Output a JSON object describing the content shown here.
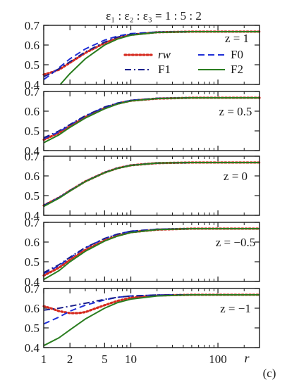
{
  "chart_data": {
    "type": "line",
    "title": "ε₁ : ε₂ : ε₃ = 1 : 5 : 2",
    "xlabel": "r",
    "corner_label": "(c)",
    "xscale": "log",
    "xlim": [
      1,
      300
    ],
    "ylim": [
      0.4,
      0.7
    ],
    "xticks": [
      1,
      2,
      5,
      10,
      100
    ],
    "yticks": [
      0.4,
      0.5,
      0.6,
      0.7
    ],
    "xtick_labels": [
      "1",
      "2",
      "5",
      "10",
      "100"
    ],
    "ytick_labels": [
      "0.4",
      "0.5",
      "0.6",
      "0.7"
    ],
    "legend": {
      "placement": "top panel, center-right",
      "entries": [
        "rw",
        "F0",
        "F1",
        "F2"
      ]
    },
    "styles": {
      "rw": {
        "color": "#d62a1f",
        "dash": "dotted"
      },
      "F0": {
        "color": "#1f2fd6",
        "dash": "dashed"
      },
      "F1": {
        "color": "#1a1f8c",
        "dash": "dashdot"
      },
      "F2": {
        "color": "#2a7d1f",
        "dash": "solid"
      }
    },
    "panels": [
      {
        "label": "z = 1",
        "series": [
          {
            "name": "rw",
            "x": [
              1,
              1.2,
              1.5,
              2,
              3,
              5,
              7,
              10,
              20,
              50,
              300
            ],
            "y": [
              0.45,
              0.46,
              0.475,
              0.51,
              0.56,
              0.61,
              0.635,
              0.652,
              0.665,
              0.668,
              0.668
            ]
          },
          {
            "name": "F0",
            "x": [
              1,
              1.2,
              1.5,
              2,
              3,
              5,
              7,
              10,
              20,
              50,
              300
            ],
            "y": [
              0.425,
              0.45,
              0.485,
              0.53,
              0.58,
              0.625,
              0.645,
              0.658,
              0.666,
              0.668,
              0.668
            ]
          },
          {
            "name": "F1",
            "x": [
              1,
              1.2,
              1.5,
              2,
              3,
              5,
              7,
              10,
              20,
              50,
              300
            ],
            "y": [
              0.44,
              0.455,
              0.48,
              0.515,
              0.565,
              0.615,
              0.64,
              0.655,
              0.665,
              0.668,
              0.668
            ]
          },
          {
            "name": "F2",
            "x": [
              1.55,
              2,
              3,
              5,
              7,
              10,
              20,
              50,
              300
            ],
            "y": [
              0.4,
              0.455,
              0.53,
              0.6,
              0.63,
              0.65,
              0.664,
              0.668,
              0.668
            ]
          }
        ]
      },
      {
        "label": "z = 0.5",
        "series": [
          {
            "name": "rw",
            "x": [
              1,
              1.5,
              2,
              3,
              5,
              7,
              10,
              20,
              50,
              300
            ],
            "y": [
              0.455,
              0.49,
              0.525,
              0.57,
              0.615,
              0.638,
              0.653,
              0.664,
              0.668,
              0.668
            ]
          },
          {
            "name": "F0",
            "x": [
              1,
              1.5,
              2,
              3,
              5,
              7,
              10,
              20,
              50,
              300
            ],
            "y": [
              0.46,
              0.495,
              0.53,
              0.575,
              0.62,
              0.64,
              0.655,
              0.665,
              0.668,
              0.668
            ]
          },
          {
            "name": "F1",
            "x": [
              1,
              1.5,
              2,
              3,
              5,
              7,
              10,
              20,
              50,
              300
            ],
            "y": [
              0.465,
              0.5,
              0.532,
              0.577,
              0.621,
              0.641,
              0.655,
              0.665,
              0.668,
              0.668
            ]
          },
          {
            "name": "F2",
            "x": [
              1,
              1.5,
              2,
              3,
              5,
              7,
              10,
              20,
              50,
              300
            ],
            "y": [
              0.44,
              0.48,
              0.518,
              0.565,
              0.612,
              0.636,
              0.652,
              0.664,
              0.668,
              0.668
            ]
          }
        ]
      },
      {
        "label": "z = 0",
        "series": [
          {
            "name": "rw",
            "x": [
              1,
              1.5,
              2,
              3,
              5,
              7,
              10,
              20,
              50,
              300
            ],
            "y": [
              0.45,
              0.49,
              0.525,
              0.572,
              0.617,
              0.639,
              0.654,
              0.665,
              0.668,
              0.668
            ]
          },
          {
            "name": "F0",
            "x": [
              1,
              1.5,
              2,
              3,
              5,
              7,
              10,
              20,
              50,
              300
            ],
            "y": [
              0.45,
              0.49,
              0.525,
              0.572,
              0.617,
              0.639,
              0.654,
              0.665,
              0.668,
              0.668
            ]
          },
          {
            "name": "F1",
            "x": [
              1,
              1.5,
              2,
              3,
              5,
              7,
              10,
              20,
              50,
              300
            ],
            "y": [
              0.45,
              0.49,
              0.525,
              0.572,
              0.617,
              0.639,
              0.654,
              0.665,
              0.668,
              0.668
            ]
          },
          {
            "name": "F2",
            "x": [
              1,
              1.5,
              2,
              3,
              5,
              7,
              10,
              20,
              50,
              300
            ],
            "y": [
              0.445,
              0.487,
              0.523,
              0.571,
              0.616,
              0.638,
              0.653,
              0.665,
              0.668,
              0.668
            ]
          }
        ]
      },
      {
        "label": "z = −0.5",
        "series": [
          {
            "name": "rw",
            "x": [
              1,
              1.5,
              2,
              3,
              5,
              7,
              10,
              20,
              50,
              300
            ],
            "y": [
              0.43,
              0.47,
              0.51,
              0.56,
              0.608,
              0.632,
              0.65,
              0.663,
              0.668,
              0.668
            ]
          },
          {
            "name": "F0",
            "x": [
              1,
              1.5,
              2,
              3,
              5,
              7,
              10,
              20,
              50,
              300
            ],
            "y": [
              0.44,
              0.48,
              0.52,
              0.57,
              0.618,
              0.64,
              0.655,
              0.665,
              0.668,
              0.668
            ]
          },
          {
            "name": "F1",
            "x": [
              1,
              1.5,
              2,
              3,
              5,
              7,
              10,
              20,
              50,
              300
            ],
            "y": [
              0.445,
              0.485,
              0.523,
              0.572,
              0.618,
              0.64,
              0.655,
              0.665,
              0.668,
              0.668
            ]
          },
          {
            "name": "F2",
            "x": [
              1,
              1.5,
              2,
              3,
              5,
              7,
              10,
              20,
              50,
              300
            ],
            "y": [
              0.41,
              0.455,
              0.5,
              0.553,
              0.605,
              0.63,
              0.648,
              0.663,
              0.668,
              0.668
            ]
          }
        ]
      },
      {
        "label": "z = −1",
        "series": [
          {
            "name": "rw",
            "x": [
              1,
              1.2,
              1.5,
              2,
              2.5,
              3,
              4,
              5,
              7,
              10,
              20,
              50,
              300
            ],
            "y": [
              0.61,
              0.6,
              0.585,
              0.575,
              0.575,
              0.58,
              0.6,
              0.615,
              0.637,
              0.653,
              0.665,
              0.668,
              0.668
            ]
          },
          {
            "name": "F0",
            "x": [
              1,
              1.5,
              2,
              3,
              5,
              7,
              10,
              20,
              50,
              300
            ],
            "y": [
              0.52,
              0.555,
              0.585,
              0.615,
              0.642,
              0.655,
              0.662,
              0.667,
              0.668,
              0.668
            ]
          },
          {
            "name": "F1",
            "x": [
              1,
              1.5,
              2,
              3,
              5,
              7,
              10,
              20,
              50,
              300
            ],
            "y": [
              0.59,
              0.6,
              0.61,
              0.625,
              0.645,
              0.655,
              0.662,
              0.667,
              0.668,
              0.668
            ]
          },
          {
            "name": "F2",
            "x": [
              1,
              1.5,
              2,
              3,
              5,
              7,
              10,
              20,
              50,
              300
            ],
            "y": [
              0.41,
              0.45,
              0.49,
              0.545,
              0.6,
              0.628,
              0.646,
              0.662,
              0.668,
              0.668
            ]
          }
        ]
      }
    ]
  }
}
